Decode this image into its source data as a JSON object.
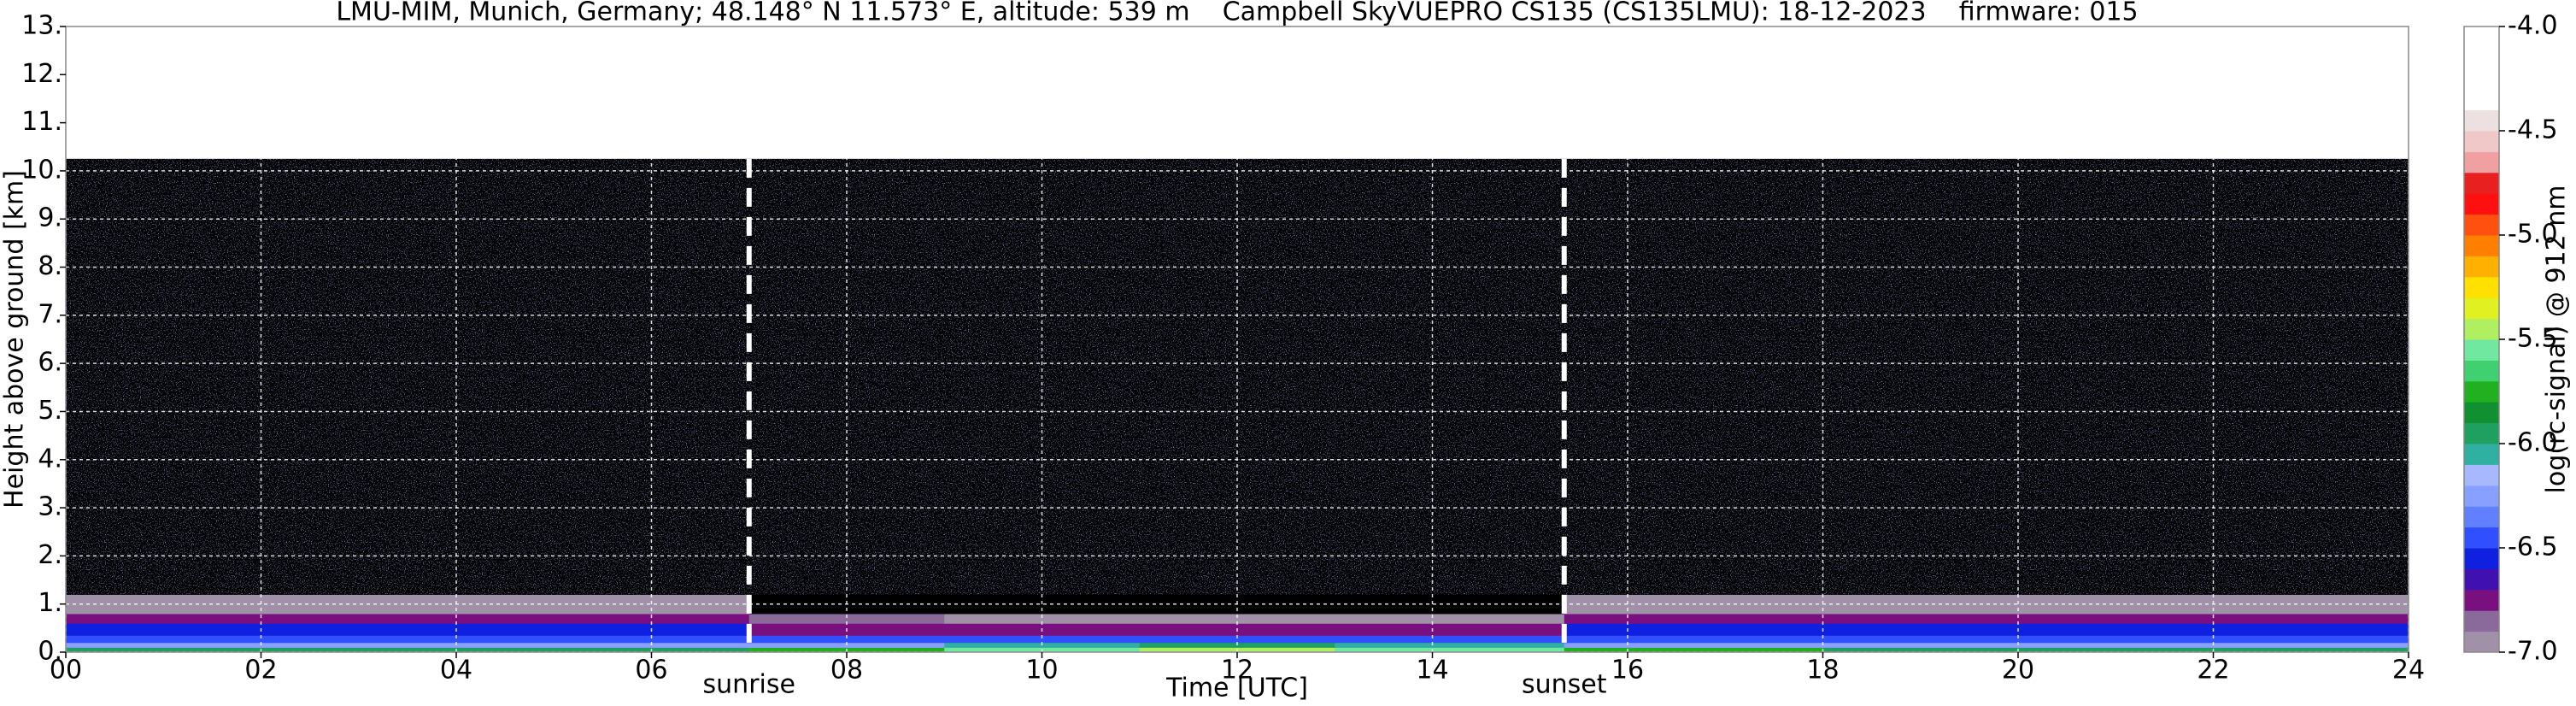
{
  "chart_data": {
    "type": "heatmap",
    "title": "LMU-MIM, Munich, Germany; 48.148° N 11.573° E, altitude: 539 m    Campbell SkyVUEPRO CS135 (CS135LMU): 18-12-2023    firmware: 015",
    "x_label": "Time [UTC]",
    "y_label": "Height above ground [km]",
    "colorbar_label": "log(rc-signal) @ 912 nm",
    "xlim": [
      0,
      24
    ],
    "ylim": [
      0,
      13
    ],
    "xticks": [
      {
        "value": 0,
        "label": "00"
      },
      {
        "value": 2,
        "label": "02"
      },
      {
        "value": 4,
        "label": "04"
      },
      {
        "value": 6,
        "label": "06"
      },
      {
        "value": 8,
        "label": "08"
      },
      {
        "value": 10,
        "label": "10"
      },
      {
        "value": 12,
        "label": "12"
      },
      {
        "value": 14,
        "label": "14"
      },
      {
        "value": 16,
        "label": "16"
      },
      {
        "value": 18,
        "label": "18"
      },
      {
        "value": 20,
        "label": "20"
      },
      {
        "value": 22,
        "label": "22"
      },
      {
        "value": 24,
        "label": "24"
      }
    ],
    "yticks": [
      {
        "value": 0,
        "label": "0."
      },
      {
        "value": 1,
        "label": "1."
      },
      {
        "value": 2,
        "label": "2."
      },
      {
        "value": 3,
        "label": "3."
      },
      {
        "value": 4,
        "label": "4."
      },
      {
        "value": 5,
        "label": "5."
      },
      {
        "value": 6,
        "label": "6."
      },
      {
        "value": 7,
        "label": "7."
      },
      {
        "value": 8,
        "label": "8."
      },
      {
        "value": 9,
        "label": "9."
      },
      {
        "value": 10,
        "label": "10."
      },
      {
        "value": 11,
        "label": "11."
      },
      {
        "value": 12,
        "label": "12."
      },
      {
        "value": 13,
        "label": "13."
      }
    ],
    "grid": true,
    "clim": [
      -7,
      -4
    ],
    "cticks": [
      {
        "value": -7,
        "label": "-7.0"
      },
      {
        "value": -6.5,
        "label": "-6.5"
      },
      {
        "value": -6,
        "label": "-6.0"
      },
      {
        "value": -5.5,
        "label": "-5.5"
      },
      {
        "value": -5,
        "label": "-5.0"
      },
      {
        "value": -4.5,
        "label": "-4.5"
      },
      {
        "value": -4,
        "label": "-4.0"
      }
    ],
    "under_color": "#000000",
    "colors": [
      "#a090a8",
      "#8a6a9a",
      "#7a1080",
      "#4010b0",
      "#1020e0",
      "#3050ff",
      "#6080ff",
      "#88a0ff",
      "#a8b8ff",
      "#30b0a0",
      "#20a060",
      "#109030",
      "#20b020",
      "#40d070",
      "#70e8a0",
      "#b0f060",
      "#e0f020",
      "#ffe000",
      "#ffb000",
      "#ff8000",
      "#ff5010",
      "#ff1010",
      "#e82020",
      "#f0a0a0",
      "#f0c8c8",
      "#ece0e0",
      "#ffffff",
      "#ffffff",
      "#ffffff",
      "#ffffff"
    ],
    "x_edges": [
      0,
      3,
      7,
      9,
      11,
      13,
      15.35,
      18,
      21,
      24
    ],
    "y_edges": [
      0,
      0.1,
      0.2,
      0.35,
      0.6,
      0.8,
      1.2,
      2,
      4,
      6,
      8,
      10.25
    ],
    "values": [
      [
        -6.0,
        -6.0,
        -5.7,
        -5.6,
        -5.5,
        -5.6,
        -5.8,
        -6.0,
        -6.0
      ],
      [
        -6.3,
        -6.3,
        -6.2,
        -6.1,
        -6.0,
        -6.1,
        -6.2,
        -6.3,
        -6.3
      ],
      [
        -6.5,
        -6.5,
        -6.5,
        -6.4,
        -6.4,
        -6.4,
        -6.5,
        -6.5,
        -6.5
      ],
      [
        -6.6,
        -6.6,
        -6.7,
        -6.7,
        -6.7,
        -6.7,
        -6.6,
        -6.6,
        -6.6
      ],
      [
        -6.8,
        -6.8,
        -6.85,
        -6.9,
        -6.9,
        -6.9,
        -6.8,
        -6.8,
        -6.8
      ],
      [
        -6.95,
        -6.95,
        -7.1,
        -7.2,
        -7.2,
        -7.2,
        -6.95,
        -6.95,
        -6.95
      ],
      [
        -7.3,
        -7.3,
        -7.3,
        -7.3,
        -7.3,
        -7.3,
        -7.3,
        -7.3,
        -7.3
      ],
      [
        -7.5,
        -7.5,
        -7.2,
        -7.2,
        -7.2,
        -7.2,
        -7.5,
        -7.5,
        -7.5
      ],
      [
        -7.5,
        -7.5,
        -7.2,
        -7.2,
        -7.2,
        -7.2,
        -7.5,
        -7.5,
        -7.5
      ],
      [
        -7.5,
        -7.5,
        -7.2,
        -7.2,
        -7.2,
        -7.2,
        -7.5,
        -7.5,
        -7.5
      ],
      [
        -7.5,
        -7.5,
        -7.2,
        -7.2,
        -7.2,
        -7.2,
        -7.5,
        -7.5,
        -7.5
      ]
    ],
    "annotations": [
      {
        "text": "sunrise",
        "x": 7.0
      },
      {
        "text": "sunset",
        "x": 15.35
      }
    ]
  }
}
